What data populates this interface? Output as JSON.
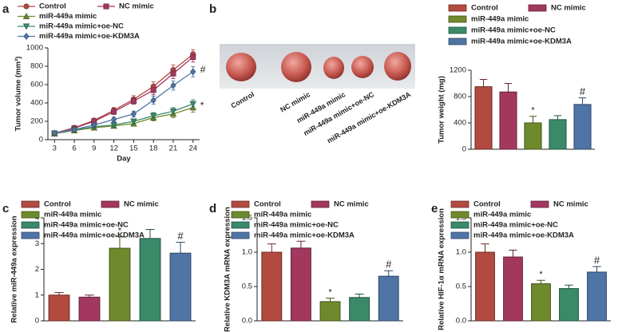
{
  "chart_data": [
    {
      "panel": "a",
      "type": "line",
      "x_label": "Day",
      "y_label": "Tumor volume (mm³)",
      "x": [
        3,
        6,
        9,
        12,
        15,
        18,
        21,
        24
      ],
      "xlim": [
        2,
        25
      ],
      "xticks": [
        3,
        6,
        9,
        12,
        15,
        18,
        21,
        24
      ],
      "ylim": [
        0,
        1000
      ],
      "yticks": [
        0,
        200,
        400,
        600,
        800,
        1000
      ],
      "series": [
        {
          "name": "Control",
          "color": "#b24a40",
          "marker": "circle",
          "values": [
            70,
            130,
            210,
            320,
            440,
            580,
            760,
            930
          ],
          "errors": [
            10,
            15,
            20,
            30,
            40,
            50,
            55,
            50
          ]
        },
        {
          "name": "NC mimic",
          "color": "#a3385f",
          "marker": "square",
          "values": [
            68,
            125,
            200,
            305,
            420,
            540,
            720,
            900
          ],
          "errors": [
            10,
            15,
            20,
            30,
            35,
            50,
            55,
            55
          ]
        },
        {
          "name": "miR-449a mimic",
          "color": "#6f8a2c",
          "marker": "triangle",
          "values": [
            65,
            100,
            130,
            150,
            175,
            240,
            280,
            350
          ],
          "errors": [
            8,
            12,
            15,
            20,
            25,
            35,
            40,
            50
          ],
          "end_label": "*"
        },
        {
          "name": "miR-449a mimic+oe-NC",
          "color": "#3a8a6a",
          "marker": "triangle-down",
          "values": [
            70,
            105,
            140,
            160,
            200,
            260,
            310,
            390
          ],
          "errors": [
            8,
            12,
            15,
            20,
            25,
            35,
            40,
            45
          ]
        },
        {
          "name": "miR-449a mimic+oe-KDM3A",
          "color": "#4f74a6",
          "marker": "diamond",
          "values": [
            70,
            110,
            160,
            220,
            280,
            430,
            590,
            740
          ],
          "errors": [
            8,
            12,
            18,
            25,
            30,
            45,
            50,
            55
          ],
          "end_label": "#"
        }
      ]
    },
    {
      "panel": "b",
      "type": "bar",
      "y_label": "Tumor weight (mg)",
      "categories": [
        "Control",
        "NC mimic",
        "miR-449a mimic",
        "miR-449a mimic+oe-NC",
        "miR-449a mimic+oe-KDM3A"
      ],
      "colors": [
        "#b24a40",
        "#a3385f",
        "#6f8a2c",
        "#3a8a6a",
        "#4f74a6"
      ],
      "values": [
        950,
        870,
        400,
        450,
        680
      ],
      "errors": [
        110,
        130,
        100,
        60,
        100
      ],
      "annotations": [
        null,
        null,
        "*",
        null,
        "#"
      ],
      "ylim": [
        0,
        1200
      ],
      "yticks": [
        0,
        400,
        800,
        1200
      ]
    },
    {
      "panel": "c",
      "type": "bar",
      "y_label": "Relative miR-449a expression",
      "categories": [
        "Control",
        "NC mimic",
        "miR-449a mimic",
        "miR-449a mimic+oe-NC",
        "miR-449a mimic+oe-KDM3A"
      ],
      "colors": [
        "#b24a40",
        "#a3385f",
        "#6f8a2c",
        "#3a8a6a",
        "#4f74a6"
      ],
      "values": [
        1.0,
        0.92,
        2.82,
        3.2,
        2.63
      ],
      "errors": [
        0.1,
        0.08,
        0.45,
        0.35,
        0.42
      ],
      "annotations": [
        null,
        null,
        "*",
        null,
        "#"
      ],
      "ylim": [
        0,
        4
      ],
      "yticks": [
        0,
        1,
        2,
        3,
        4
      ]
    },
    {
      "panel": "d",
      "type": "bar",
      "y_label": "Relative KDM3A mRNA expression",
      "categories": [
        "Control",
        "NC mimic",
        "miR-449a mimic",
        "miR-449a mimic+oe-NC",
        "miR-449a mimic+oe-KDM3A"
      ],
      "colors": [
        "#b24a40",
        "#a3385f",
        "#6f8a2c",
        "#3a8a6a",
        "#4f74a6"
      ],
      "values": [
        1.0,
        1.06,
        0.28,
        0.34,
        0.65
      ],
      "errors": [
        0.12,
        0.1,
        0.05,
        0.05,
        0.08
      ],
      "annotations": [
        null,
        null,
        "*",
        null,
        "#"
      ],
      "ylim": [
        0,
        1.5
      ],
      "yticks": [
        {
          "value": 0,
          "label": "0.0"
        },
        0.5,
        {
          "value": 1,
          "label": "1.0"
        },
        1.5
      ]
    },
    {
      "panel": "e",
      "type": "bar",
      "y_label": "Relative HIF-1α mRNA expression",
      "categories": [
        "Control",
        "NC mimic",
        "miR-449a mimic",
        "miR-449a mimic+oe-NC",
        "miR-449a mimic+oe-KDM3A"
      ],
      "colors": [
        "#b24a40",
        "#a3385f",
        "#6f8a2c",
        "#3a8a6a",
        "#4f74a6"
      ],
      "values": [
        1.0,
        0.93,
        0.54,
        0.47,
        0.71
      ],
      "errors": [
        0.12,
        0.1,
        0.05,
        0.05,
        0.08
      ],
      "annotations": [
        null,
        null,
        "*",
        null,
        "#"
      ],
      "ylim": [
        0,
        1.5
      ],
      "yticks": [
        {
          "value": 0,
          "label": "0.0"
        },
        0.5,
        {
          "value": 1,
          "label": "1.0"
        },
        1.5
      ]
    }
  ]
}
